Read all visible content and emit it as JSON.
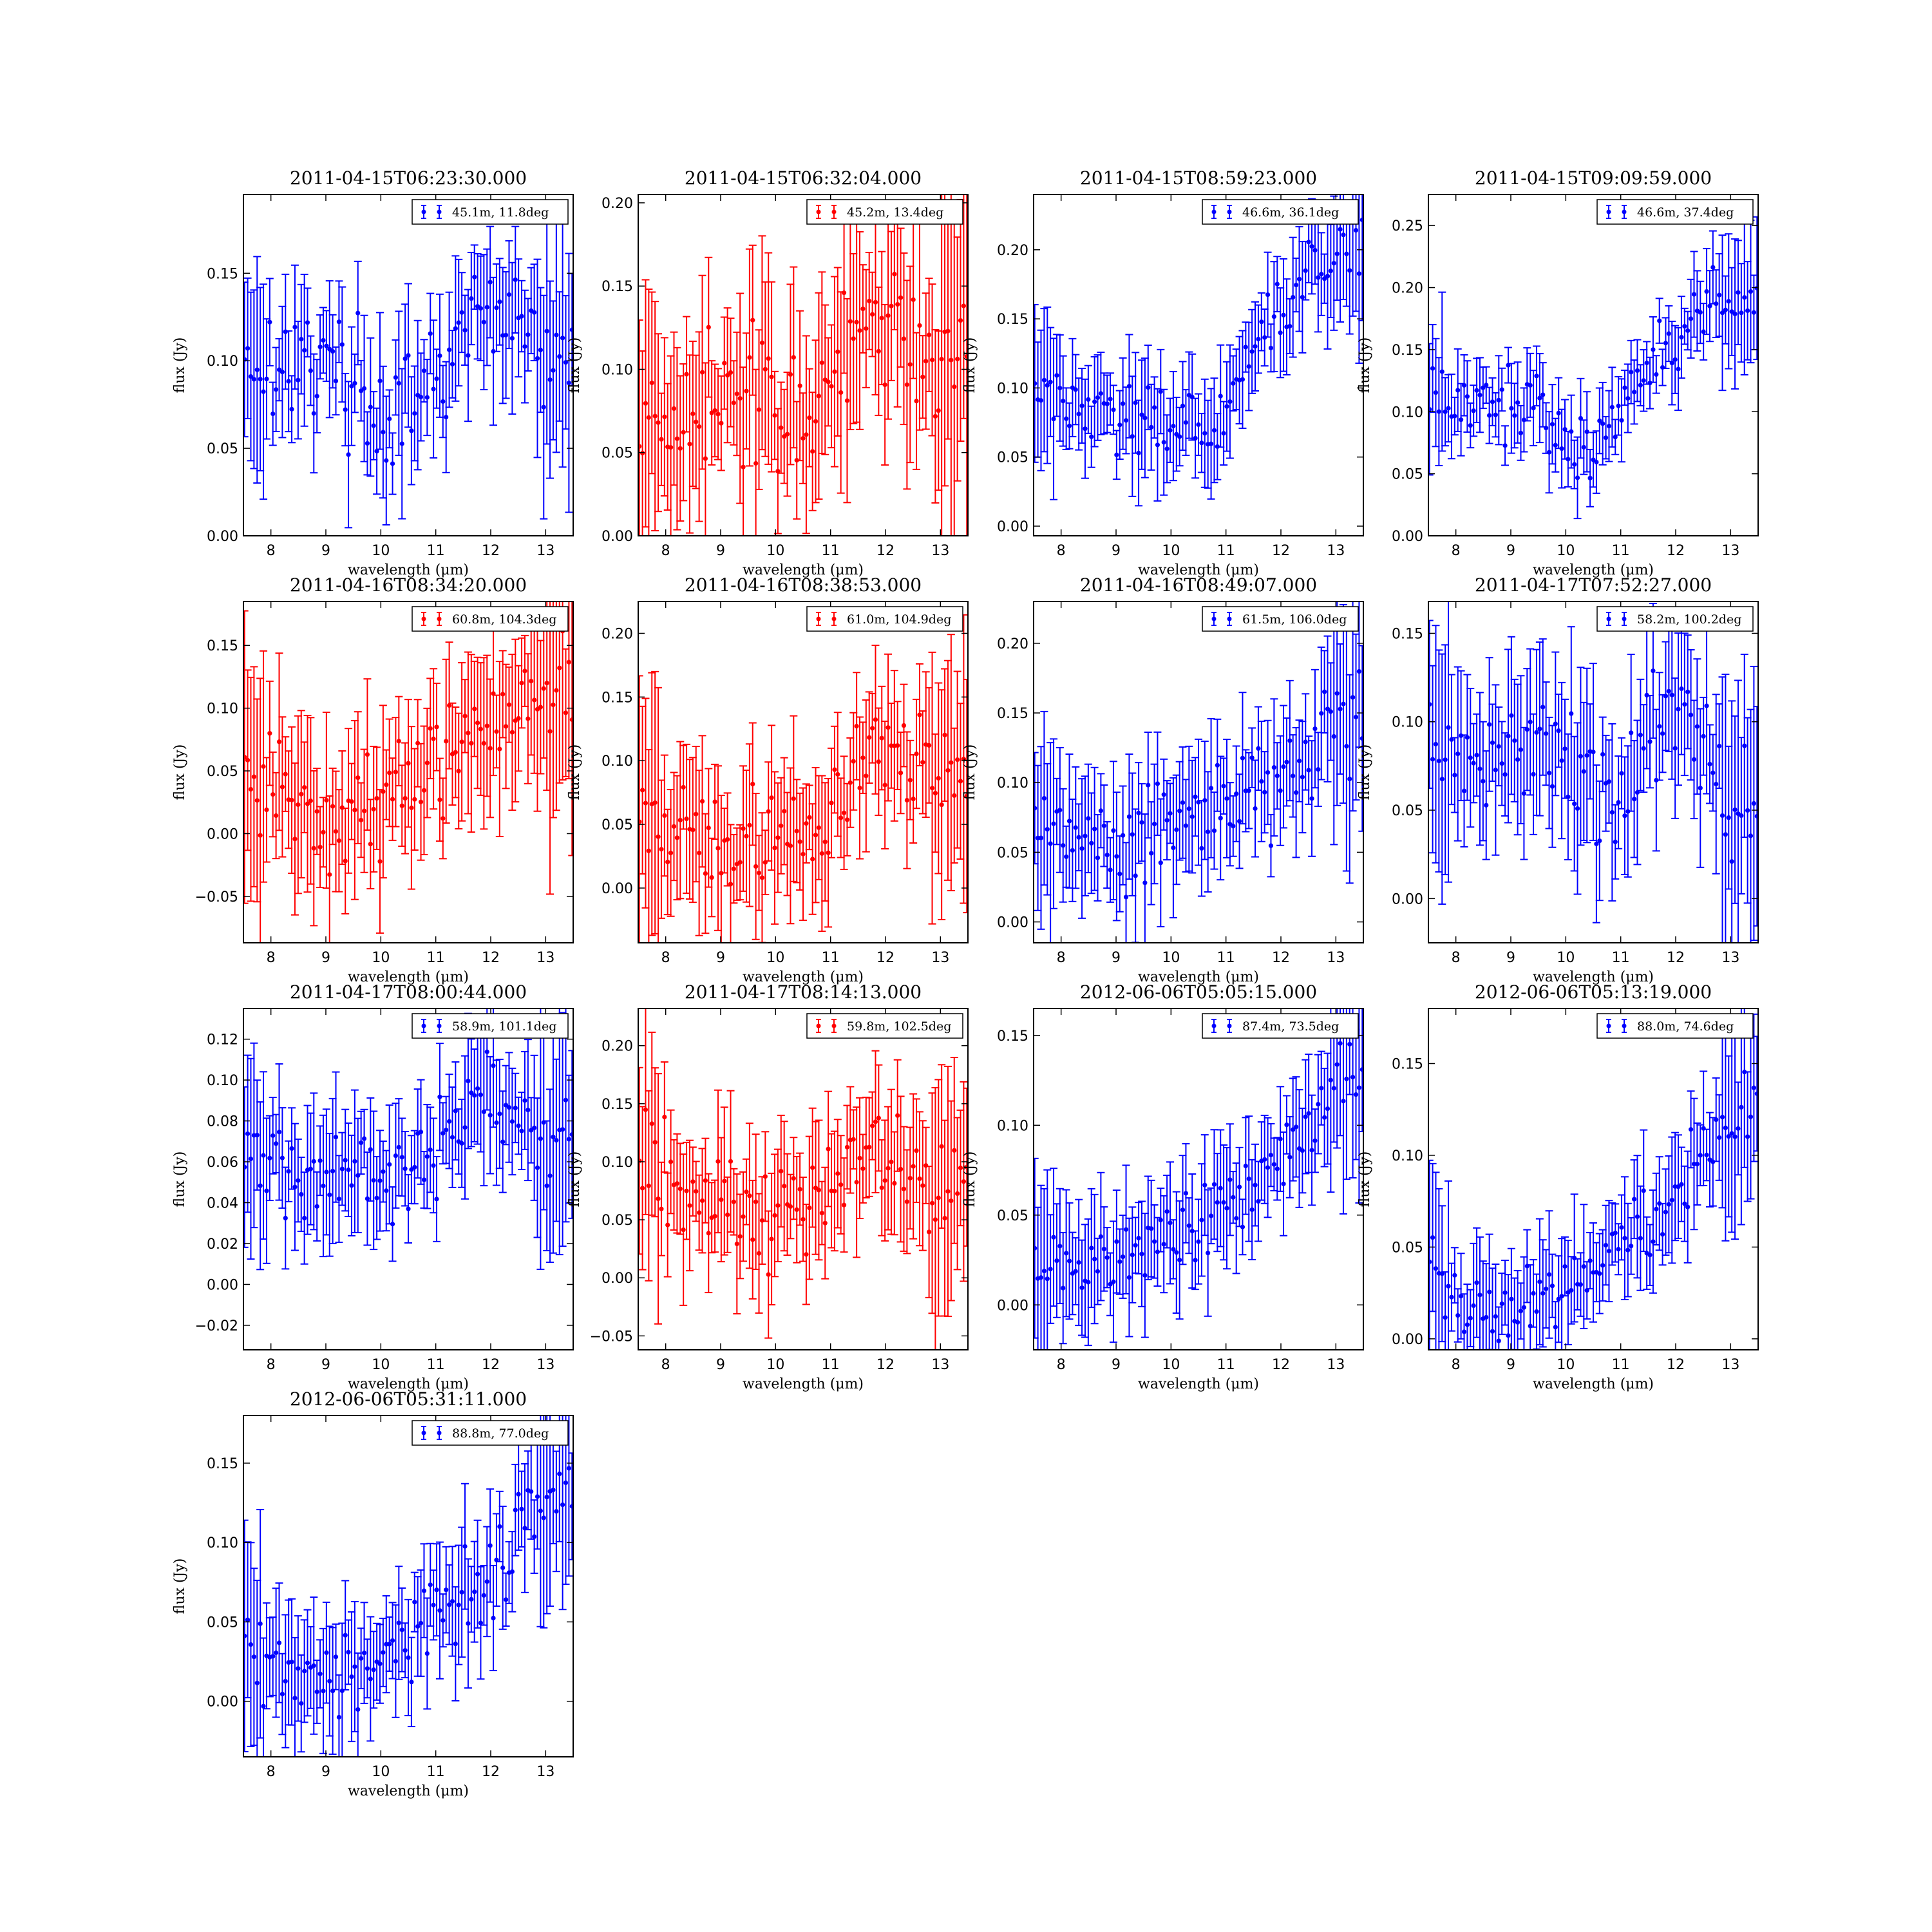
{
  "figure": {
    "xlabel": "wavelength (μm)",
    "ylabel": "flux (Jy)"
  },
  "chart_data": [
    {
      "type": "scatter",
      "title": "2011-04-15T06:23:30.000",
      "legend": "45.1m, 11.8deg",
      "color": "#0000ff",
      "xlim": [
        7.5,
        13.5
      ],
      "ylim": [
        0.0,
        0.195
      ],
      "yticks": [
        0.0,
        0.05,
        0.1,
        0.15
      ],
      "ytick_labels": [
        "0.00",
        "0.05",
        "0.10",
        "0.15"
      ],
      "xticks": [
        8,
        9,
        10,
        11,
        12,
        13
      ],
      "xlabel": "wavelength (μm)",
      "ylabel": "flux (Jy)",
      "grid": false,
      "legend_position": "top-right",
      "trend": [
        [
          7.5,
          0.1
        ],
        [
          8.5,
          0.1
        ],
        [
          9.5,
          0.09
        ],
        [
          10.2,
          0.06
        ],
        [
          11.0,
          0.085
        ],
        [
          11.8,
          0.13
        ],
        [
          12.5,
          0.12
        ],
        [
          13.0,
          0.1
        ],
        [
          13.5,
          0.1
        ]
      ],
      "noise": 0.025,
      "err": 0.03
    },
    {
      "type": "scatter",
      "title": "2011-04-15T06:32:04.000",
      "legend": "45.2m, 13.4deg",
      "color": "#ff0000",
      "xlim": [
        7.5,
        13.5
      ],
      "ylim": [
        0.0,
        0.205
      ],
      "yticks": [
        0.0,
        0.05,
        0.1,
        0.15,
        0.2
      ],
      "ytick_labels": [
        "0.00",
        "0.05",
        "0.10",
        "0.15",
        "0.20"
      ],
      "xticks": [
        8,
        9,
        10,
        11,
        12,
        13
      ],
      "xlabel": "wavelength (μm)",
      "ylabel": "flux (Jy)",
      "grid": false,
      "legend_position": "top-right",
      "trend": [
        [
          7.5,
          0.07
        ],
        [
          8.5,
          0.075
        ],
        [
          9.5,
          0.09
        ],
        [
          10.3,
          0.07
        ],
        [
          11.0,
          0.09
        ],
        [
          11.8,
          0.13
        ],
        [
          12.5,
          0.12
        ],
        [
          13.0,
          0.11
        ],
        [
          13.5,
          0.12
        ]
      ],
      "noise": 0.03,
      "err": 0.045
    },
    {
      "type": "scatter",
      "title": "2011-04-15T08:59:23.000",
      "legend": "46.6m, 36.1deg",
      "color": "#0000ff",
      "xlim": [
        7.5,
        13.5
      ],
      "ylim": [
        -0.007,
        0.24
      ],
      "yticks": [
        0.0,
        0.05,
        0.1,
        0.15,
        0.2
      ],
      "ytick_labels": [
        "0.00",
        "0.05",
        "0.10",
        "0.15",
        "0.20"
      ],
      "xticks": [
        8,
        9,
        10,
        11,
        12,
        13
      ],
      "xlabel": "wavelength (μm)",
      "ylabel": "flux (Jy)",
      "grid": false,
      "legend_position": "top-right",
      "trend": [
        [
          7.5,
          0.1
        ],
        [
          8.5,
          0.085
        ],
        [
          9.5,
          0.08
        ],
        [
          10.2,
          0.06
        ],
        [
          11.0,
          0.09
        ],
        [
          11.8,
          0.14
        ],
        [
          12.5,
          0.18
        ],
        [
          13.0,
          0.19
        ],
        [
          13.5,
          0.2
        ]
      ],
      "noise": 0.02,
      "err": 0.03
    },
    {
      "type": "scatter",
      "title": "2011-04-15T09:09:59.000",
      "legend": "46.6m, 37.4deg",
      "color": "#0000ff",
      "xlim": [
        7.5,
        13.5
      ],
      "ylim": [
        0.0,
        0.275
      ],
      "yticks": [
        0.0,
        0.05,
        0.1,
        0.15,
        0.2,
        0.25
      ],
      "ytick_labels": [
        "0.00",
        "0.05",
        "0.10",
        "0.15",
        "0.20",
        "0.25"
      ],
      "xticks": [
        8,
        9,
        10,
        11,
        12,
        13
      ],
      "xlabel": "wavelength (μm)",
      "ylabel": "flux (Jy)",
      "grid": false,
      "legend_position": "top-right",
      "trend": [
        [
          7.5,
          0.11
        ],
        [
          8.5,
          0.105
        ],
        [
          9.5,
          0.1
        ],
        [
          10.3,
          0.06
        ],
        [
          11.0,
          0.1
        ],
        [
          11.8,
          0.16
        ],
        [
          12.5,
          0.18
        ],
        [
          13.0,
          0.19
        ],
        [
          13.5,
          0.2
        ]
      ],
      "noise": 0.02,
      "err": 0.025
    },
    {
      "type": "scatter",
      "title": "2011-04-16T08:34:20.000",
      "legend": "60.8m, 104.3deg",
      "color": "#ff0000",
      "xlim": [
        7.5,
        13.5
      ],
      "ylim": [
        -0.087,
        0.185
      ],
      "yticks": [
        -0.05,
        0.0,
        0.05,
        0.1,
        0.15
      ],
      "ytick_labels": [
        "−0.05",
        "0.00",
        "0.05",
        "0.10",
        "0.15"
      ],
      "xticks": [
        8,
        9,
        10,
        11,
        12,
        13
      ],
      "xlabel": "wavelength (μm)",
      "ylabel": "flux (Jy)",
      "grid": false,
      "legend_position": "top-right",
      "trend": [
        [
          7.5,
          0.05
        ],
        [
          8.5,
          0.03
        ],
        [
          9.3,
          0.01
        ],
        [
          10.0,
          0.04
        ],
        [
          11.0,
          0.06
        ],
        [
          11.8,
          0.08
        ],
        [
          12.5,
          0.1
        ],
        [
          13.0,
          0.12
        ],
        [
          13.5,
          0.13
        ]
      ],
      "noise": 0.035,
      "err": 0.05
    },
    {
      "type": "scatter",
      "title": "2011-04-16T08:38:53.000",
      "legend": "61.0m, 104.9deg",
      "color": "#ff0000",
      "xlim": [
        7.5,
        13.5
      ],
      "ylim": [
        -0.043,
        0.225
      ],
      "yticks": [
        0.0,
        0.05,
        0.1,
        0.15,
        0.2
      ],
      "ytick_labels": [
        "0.00",
        "0.05",
        "0.10",
        "0.15",
        "0.20"
      ],
      "xticks": [
        8,
        9,
        10,
        11,
        12,
        13
      ],
      "xlabel": "wavelength (μm)",
      "ylabel": "flux (Jy)",
      "grid": false,
      "legend_position": "top-right",
      "trend": [
        [
          7.5,
          0.06
        ],
        [
          8.5,
          0.04
        ],
        [
          9.5,
          0.03
        ],
        [
          10.5,
          0.04
        ],
        [
          11.0,
          0.05
        ],
        [
          11.8,
          0.12
        ],
        [
          12.5,
          0.1
        ],
        [
          13.0,
          0.09
        ],
        [
          13.5,
          0.1
        ]
      ],
      "noise": 0.03,
      "err": 0.045
    },
    {
      "type": "scatter",
      "title": "2011-04-16T08:49:07.000",
      "legend": "61.5m, 106.0deg",
      "color": "#0000ff",
      "xlim": [
        7.5,
        13.5
      ],
      "ylim": [
        -0.015,
        0.23
      ],
      "yticks": [
        0.0,
        0.05,
        0.1,
        0.15,
        0.2
      ],
      "ytick_labels": [
        "0.00",
        "0.05",
        "0.10",
        "0.15",
        "0.20"
      ],
      "xticks": [
        8,
        9,
        10,
        11,
        12,
        13
      ],
      "xlabel": "wavelength (μm)",
      "ylabel": "flux (Jy)",
      "grid": false,
      "legend_position": "top-right",
      "trend": [
        [
          7.5,
          0.07
        ],
        [
          8.5,
          0.06
        ],
        [
          9.5,
          0.06
        ],
        [
          10.3,
          0.08
        ],
        [
          11.0,
          0.08
        ],
        [
          11.8,
          0.1
        ],
        [
          12.5,
          0.12
        ],
        [
          13.0,
          0.14
        ],
        [
          13.5,
          0.15
        ]
      ],
      "noise": 0.025,
      "err": 0.035
    },
    {
      "type": "scatter",
      "title": "2011-04-17T07:52:27.000",
      "legend": "58.2m, 100.2deg",
      "color": "#0000ff",
      "xlim": [
        7.5,
        13.5
      ],
      "ylim": [
        -0.025,
        0.168
      ],
      "yticks": [
        0.0,
        0.05,
        0.1,
        0.15
      ],
      "ytick_labels": [
        "0.00",
        "0.05",
        "0.10",
        "0.15"
      ],
      "xticks": [
        8,
        9,
        10,
        11,
        12,
        13
      ],
      "xlabel": "wavelength (μm)",
      "ylabel": "flux (Jy)",
      "grid": false,
      "legend_position": "top-right",
      "trend": [
        [
          7.5,
          0.08
        ],
        [
          8.5,
          0.075
        ],
        [
          9.5,
          0.08
        ],
        [
          10.5,
          0.06
        ],
        [
          11.2,
          0.07
        ],
        [
          11.8,
          0.12
        ],
        [
          12.5,
          0.09
        ],
        [
          13.0,
          0.05
        ],
        [
          13.5,
          0.06
        ]
      ],
      "noise": 0.025,
      "err": 0.035
    },
    {
      "type": "scatter",
      "title": "2011-04-17T08:00:44.000",
      "legend": "58.9m, 101.1deg",
      "color": "#0000ff",
      "xlim": [
        7.5,
        13.5
      ],
      "ylim": [
        -0.032,
        0.135
      ],
      "yticks": [
        -0.02,
        0.0,
        0.02,
        0.04,
        0.06,
        0.08,
        0.1,
        0.12
      ],
      "ytick_labels": [
        "−0.02",
        "0.00",
        "0.02",
        "0.04",
        "0.06",
        "0.08",
        "0.10",
        "0.12"
      ],
      "xticks": [
        8,
        9,
        10,
        11,
        12,
        13
      ],
      "xlabel": "wavelength (μm)",
      "ylabel": "flux (Jy)",
      "grid": false,
      "legend_position": "top-right",
      "trend": [
        [
          7.5,
          0.07
        ],
        [
          8.5,
          0.05
        ],
        [
          9.5,
          0.06
        ],
        [
          10.5,
          0.055
        ],
        [
          11.2,
          0.07
        ],
        [
          11.8,
          0.09
        ],
        [
          12.5,
          0.09
        ],
        [
          13.0,
          0.06
        ],
        [
          13.5,
          0.08
        ]
      ],
      "noise": 0.018,
      "err": 0.025
    },
    {
      "type": "scatter",
      "title": "2011-04-17T08:14:13.000",
      "legend": "59.8m, 102.5deg",
      "color": "#ff0000",
      "xlim": [
        7.5,
        13.5
      ],
      "ylim": [
        -0.062,
        0.232
      ],
      "yticks": [
        -0.05,
        0.0,
        0.05,
        0.1,
        0.15,
        0.2
      ],
      "ytick_labels": [
        "−0.05",
        "0.00",
        "0.05",
        "0.10",
        "0.15",
        "0.20"
      ],
      "xticks": [
        8,
        9,
        10,
        11,
        12,
        13
      ],
      "xlabel": "wavelength (μm)",
      "ylabel": "flux (Jy)",
      "grid": false,
      "legend_position": "top-right",
      "trend": [
        [
          7.5,
          0.1
        ],
        [
          8.5,
          0.07
        ],
        [
          9.5,
          0.05
        ],
        [
          10.5,
          0.06
        ],
        [
          11.2,
          0.09
        ],
        [
          11.8,
          0.12
        ],
        [
          12.5,
          0.1
        ],
        [
          13.0,
          0.08
        ],
        [
          13.5,
          0.1
        ]
      ],
      "noise": 0.03,
      "err": 0.045
    },
    {
      "type": "scatter",
      "title": "2012-06-06T05:05:15.000",
      "legend": "87.4m, 73.5deg",
      "color": "#0000ff",
      "xlim": [
        7.5,
        13.5
      ],
      "ylim": [
        -0.025,
        0.165
      ],
      "yticks": [
        0.0,
        0.05,
        0.1,
        0.15
      ],
      "ytick_labels": [
        "0.00",
        "0.05",
        "0.10",
        "0.15"
      ],
      "xticks": [
        8,
        9,
        10,
        11,
        12,
        13
      ],
      "xlabel": "wavelength (μm)",
      "ylabel": "flux (Jy)",
      "grid": false,
      "legend_position": "top-right",
      "trend": [
        [
          7.5,
          0.02
        ],
        [
          8.5,
          0.02
        ],
        [
          9.5,
          0.035
        ],
        [
          10.3,
          0.045
        ],
        [
          11.0,
          0.06
        ],
        [
          11.8,
          0.07
        ],
        [
          12.5,
          0.1
        ],
        [
          13.0,
          0.13
        ],
        [
          13.5,
          0.13
        ]
      ],
      "noise": 0.015,
      "err": 0.025
    },
    {
      "type": "scatter",
      "title": "2012-06-06T05:13:19.000",
      "legend": "88.0m, 74.6deg",
      "color": "#0000ff",
      "xlim": [
        7.5,
        13.5
      ],
      "ylim": [
        -0.006,
        0.18
      ],
      "yticks": [
        0.0,
        0.05,
        0.1,
        0.15
      ],
      "ytick_labels": [
        "0.00",
        "0.05",
        "0.10",
        "0.15"
      ],
      "xticks": [
        8,
        9,
        10,
        11,
        12,
        13
      ],
      "xlabel": "wavelength (μm)",
      "ylabel": "flux (Jy)",
      "grid": false,
      "legend_position": "top-right",
      "trend": [
        [
          7.5,
          0.04
        ],
        [
          8.0,
          0.015
        ],
        [
          9.0,
          0.01
        ],
        [
          10.0,
          0.03
        ],
        [
          11.0,
          0.05
        ],
        [
          11.8,
          0.07
        ],
        [
          12.5,
          0.1
        ],
        [
          13.0,
          0.12
        ],
        [
          13.5,
          0.13
        ]
      ],
      "noise": 0.015,
      "err": 0.025
    },
    {
      "type": "scatter",
      "title": "2012-06-06T05:31:11.000",
      "legend": "88.8m, 77.0deg",
      "color": "#0000ff",
      "xlim": [
        7.5,
        13.5
      ],
      "ylim": [
        -0.035,
        0.18
      ],
      "yticks": [
        0.0,
        0.05,
        0.1,
        0.15
      ],
      "ytick_labels": [
        "0.00",
        "0.05",
        "0.10",
        "0.15"
      ],
      "xticks": [
        8,
        9,
        10,
        11,
        12,
        13
      ],
      "xlabel": "wavelength (μm)",
      "ylabel": "flux (Jy)",
      "grid": false,
      "legend_position": "top-right",
      "trend": [
        [
          7.5,
          0.05
        ],
        [
          8.0,
          0.02
        ],
        [
          9.0,
          0.01
        ],
        [
          10.0,
          0.03
        ],
        [
          11.0,
          0.06
        ],
        [
          11.8,
          0.07
        ],
        [
          12.5,
          0.1
        ],
        [
          13.0,
          0.13
        ],
        [
          13.5,
          0.14
        ]
      ],
      "noise": 0.02,
      "err": 0.03
    }
  ]
}
